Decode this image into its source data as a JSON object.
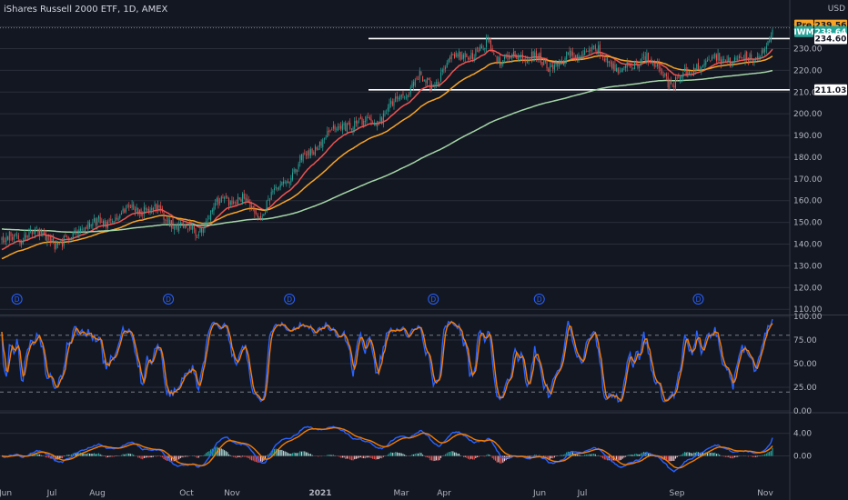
{
  "header": {
    "title": "iShares Russell 2000 ETF, 1D, AMEX",
    "currency": "USD"
  },
  "colors": {
    "background": "#131722",
    "up": "#26a69a",
    "down": "#ef5350",
    "grid": "#2a2e39",
    "ma_fast": "#ef5350",
    "ma_mid": "#f7a428",
    "ma_slow": "#a5d6a7",
    "stoch_k": "#2962ff",
    "stoch_d": "#f57c00",
    "macd": "#2962ff",
    "signal": "#f57c00",
    "pre_badge": "#f7a428",
    "iwm_badge": "#26a69a"
  },
  "price_tags": [
    {
      "label": "Pre",
      "value": "239.56",
      "style": "pre"
    },
    {
      "label": "IWM",
      "value": "238.64",
      "style": "last"
    },
    {
      "label": "",
      "value": "234.60",
      "style": "level"
    },
    {
      "label": "",
      "value": "211.03",
      "style": "level"
    }
  ],
  "dividend_marker": "D",
  "chart_data": [
    {
      "type": "candlestick",
      "title": "iShares Russell 2000 ETF, 1D, AMEX",
      "x_tick_labels": [
        "Jun",
        "Jul",
        "Aug",
        "Oct",
        "Nov",
        "2021",
        "Mar",
        "Apr",
        "Jun",
        "Jul",
        "Sep",
        "Nov"
      ],
      "y_ticks": [
        110,
        120,
        130,
        140,
        150,
        160,
        170,
        180,
        190,
        200,
        210,
        220,
        230,
        240
      ],
      "ylim": [
        108,
        244
      ],
      "current_price": 238.64,
      "premarket_price": 239.56,
      "horizontal_levels": [
        234.6,
        211.03
      ],
      "anchor_closes": [
        [
          0,
          141
        ],
        [
          20,
          145
        ],
        [
          40,
          140
        ],
        [
          55,
          149
        ],
        [
          70,
          150
        ],
        [
          85,
          157
        ],
        [
          100,
          156
        ],
        [
          115,
          149
        ],
        [
          130,
          146
        ],
        [
          145,
          161
        ],
        [
          160,
          160
        ],
        [
          170,
          152
        ],
        [
          180,
          164
        ],
        [
          200,
          180
        ],
        [
          215,
          190
        ],
        [
          230,
          196
        ],
        [
          245,
          195
        ],
        [
          260,
          205
        ],
        [
          275,
          217
        ],
        [
          285,
          212
        ],
        [
          295,
          225
        ],
        [
          305,
          228
        ],
        [
          315,
          227
        ],
        [
          322,
          234
        ],
        [
          330,
          223
        ],
        [
          340,
          226
        ],
        [
          350,
          227
        ],
        [
          360,
          221
        ],
        [
          375,
          226
        ],
        [
          390,
          230
        ],
        [
          400,
          224
        ],
        [
          415,
          220
        ],
        [
          425,
          228
        ],
        [
          440,
          215
        ],
        [
          455,
          218
        ],
        [
          465,
          227
        ],
        [
          475,
          224
        ],
        [
          485,
          226
        ],
        [
          495,
          224
        ],
        [
          505,
          233
        ],
        [
          510,
          239
        ]
      ],
      "total_bars": 510,
      "series": [
        {
          "name": "",
          "kind": "ema",
          "period": 20
        },
        {
          "name": "",
          "kind": "ema",
          "period": 50
        },
        {
          "name": "",
          "kind": "ema",
          "period": 200,
          "seed": 147
        }
      ],
      "dividend_bars": [
        10,
        110,
        190,
        285,
        355,
        460
      ]
    },
    {
      "type": "line",
      "indicator": "stochastic",
      "y_ticks": [
        0,
        25,
        50,
        75,
        100
      ],
      "y_tick_labels": [
        "0.00",
        "25.00",
        "50.00",
        "75.00",
        "100.00"
      ],
      "dashed_levels": [
        20,
        80
      ],
      "ylim": [
        0,
        100
      ],
      "last_value": 97
    },
    {
      "type": "line",
      "indicator": "macd",
      "y_ticks": [
        0,
        4
      ],
      "y_tick_labels": [
        "0.00",
        "4.00"
      ],
      "ylim": [
        -3.6,
        7.3
      ],
      "last_value": 3.2
    }
  ]
}
